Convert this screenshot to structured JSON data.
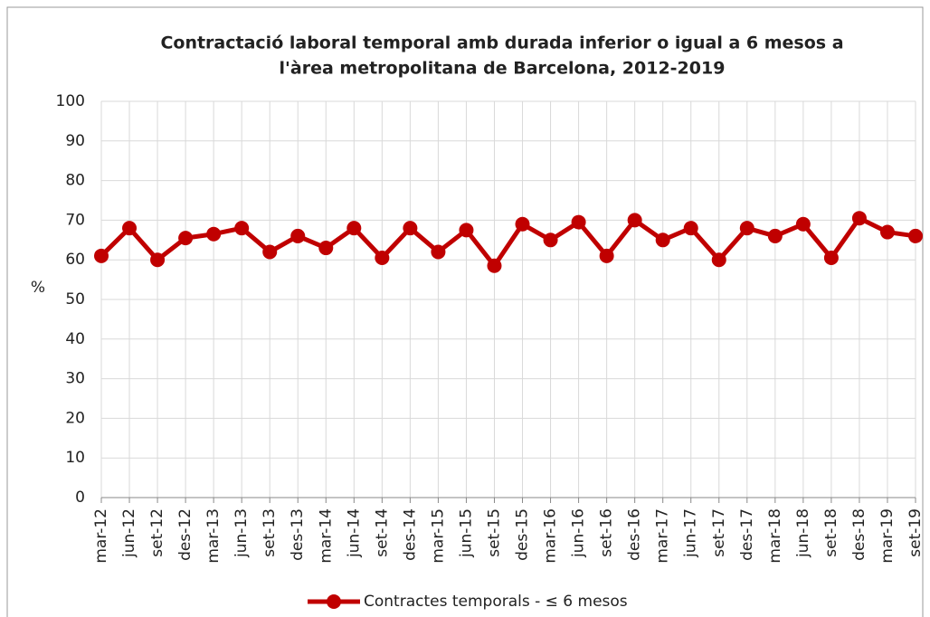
{
  "chart_data": {
    "type": "line",
    "title": [
      "Contractació laboral temporal amb durada inferior o igual a 6 mesos a",
      "l'àrea metropolitana de Barcelona, 2012-2019"
    ],
    "y_label": "%",
    "categories": [
      "mar-12",
      "jun-12",
      "set-12",
      "des-12",
      "mar-13",
      "jun-13",
      "set-13",
      "des-13",
      "mar-14",
      "jun-14",
      "set-14",
      "des-14",
      "mar-15",
      "jun-15",
      "set-15",
      "des-15",
      "mar-16",
      "jun-16",
      "set-16",
      "des-16",
      "mar-17",
      "jun-17",
      "set-17",
      "des-17",
      "mar-18",
      "jun-18",
      "set-18",
      "des-18",
      "mar-19",
      "set-19"
    ],
    "series": [
      {
        "name": "Contractes temporals - ≤ 6 mesos",
        "color": "#c00000",
        "values": [
          61,
          68,
          60,
          65.5,
          66.5,
          68,
          62,
          66,
          63,
          68,
          60.5,
          68,
          62,
          67.5,
          58.5,
          69,
          65,
          69.5,
          61,
          70,
          65,
          68,
          60,
          68,
          66,
          69,
          60.5,
          70.5,
          67,
          66
        ]
      }
    ],
    "ylim": [
      0,
      100
    ],
    "yticks": [
      0,
      10,
      20,
      30,
      40,
      50,
      60,
      70,
      80,
      90,
      100
    ],
    "grid": true,
    "legend": "bottom"
  }
}
